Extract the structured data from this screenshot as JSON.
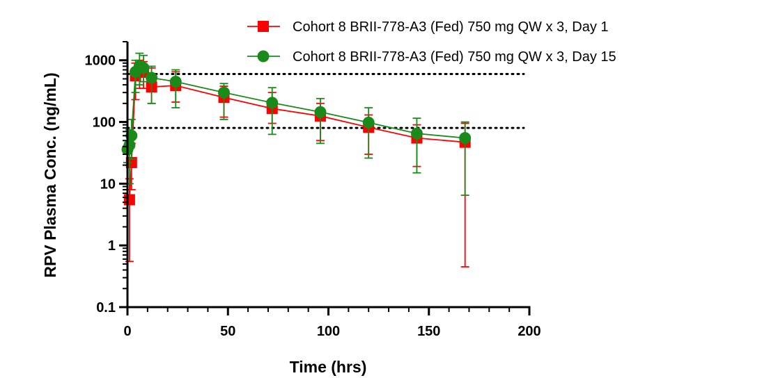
{
  "chart_data": {
    "type": "line",
    "xlabel": "Time (hrs)",
    "ylabel": "RPV Plasma Conc. (ng/mL)",
    "x_scale": "linear",
    "y_scale": "log",
    "xlim": [
      0,
      200
    ],
    "ylim": [
      0.1,
      2000
    ],
    "x_ticks": [
      0,
      50,
      100,
      150,
      200
    ],
    "x_tick_labels": [
      "0",
      "50",
      "100",
      "150",
      "200"
    ],
    "y_ticks": [
      0.1,
      1,
      10,
      100,
      1000
    ],
    "y_tick_labels": [
      "0.1",
      "1",
      "10",
      "100",
      "1000"
    ],
    "legend_position": "top-right",
    "reference_lines": [
      {
        "y": 600,
        "style": "dotted"
      },
      {
        "y": 80,
        "style": "dotted"
      }
    ],
    "series": [
      {
        "name": "Cohort 8 BRII-778-A3 (Fed) 750 mg QW x 3, Day 1",
        "color": "#ff0000",
        "marker": "square",
        "x": [
          1,
          2,
          4,
          6,
          8,
          12,
          24,
          48,
          72,
          96,
          120,
          144,
          168
        ],
        "y": [
          5.5,
          22,
          560,
          650,
          640,
          370,
          390,
          250,
          165,
          125,
          82,
          55,
          47
        ],
        "err_low": [
          0.55,
          8,
          230,
          350,
          350,
          200,
          210,
          120,
          95,
          50,
          30,
          19,
          0.45
        ],
        "err_high": [
          12,
          45,
          900,
          1000,
          950,
          750,
          650,
          380,
          300,
          200,
          130,
          90,
          95
        ]
      },
      {
        "name": "Cohort 8 BRII-778-A3 (Fed) 750 mg QW x 3, Day 15",
        "color": "#1a8a1a",
        "marker": "circle",
        "x": [
          0,
          1,
          2,
          4,
          6,
          8,
          12,
          24,
          48,
          72,
          96,
          120,
          144,
          168
        ],
        "y": [
          36,
          42,
          60,
          650,
          800,
          750,
          520,
          450,
          300,
          205,
          145,
          98,
          65,
          55
        ],
        "err_low": [
          22,
          10,
          25,
          300,
          400,
          450,
          200,
          170,
          110,
          63,
          45,
          26,
          15,
          6.5
        ],
        "err_high": [
          60,
          75,
          110,
          1000,
          1300,
          1200,
          800,
          700,
          420,
          360,
          240,
          170,
          115,
          100
        ]
      }
    ]
  }
}
